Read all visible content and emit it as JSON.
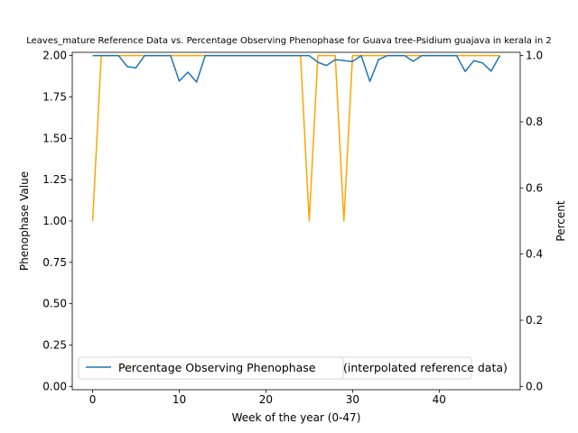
{
  "chart_data": {
    "type": "line",
    "title": "Leaves_mature Reference Data vs. Percentage Observing Phenophase for Guava tree-Psidium guajava in kerala in 2",
    "xlabel": "Week of the year (0-47)",
    "ylabel": "Phenophase Value",
    "y2label": "Percent",
    "xlim": [
      -2.35,
      49.35
    ],
    "ylim": [
      -0.02,
      2.02
    ],
    "y2lim": [
      -0.01,
      1.01
    ],
    "x_ticks": [
      0,
      10,
      20,
      30,
      40
    ],
    "y_ticks": [
      0.0,
      0.25,
      0.5,
      0.75,
      1.0,
      1.25,
      1.5,
      1.75,
      2.0
    ],
    "y2_ticks": [
      0.0,
      0.2,
      0.4,
      0.6,
      0.8,
      1.0
    ],
    "x_tick_labels": [
      "0",
      "10",
      "20",
      "30",
      "40"
    ],
    "y_tick_labels": [
      "0.00",
      "0.25",
      "0.50",
      "0.75",
      "1.00",
      "1.25",
      "1.50",
      "1.75",
      "2.00"
    ],
    "y2_tick_labels": [
      "0.0",
      "0.2",
      "0.4",
      "0.6",
      "0.8",
      "1.0"
    ],
    "legend": {
      "placement": "lower-left",
      "entries": [
        {
          "label": "Percentage Observing Phenophase",
          "color": "#1f77b4"
        },
        {
          "label": "(interpolated reference data)",
          "color": "#ffa500"
        }
      ]
    },
    "grid": false,
    "series": [
      {
        "name": "(interpolated reference data)",
        "axis": "left",
        "color": "#ffa500",
        "x": [
          0,
          1,
          2,
          3,
          4,
          5,
          6,
          7,
          8,
          9,
          10,
          11,
          12,
          13,
          14,
          15,
          16,
          17,
          18,
          19,
          20,
          21,
          22,
          23,
          24,
          25,
          26,
          27,
          28,
          29,
          30,
          31,
          32,
          33,
          34,
          35,
          36,
          37,
          38,
          39,
          40,
          41,
          42,
          43,
          44,
          45,
          46,
          47
        ],
        "values": [
          1,
          2,
          2,
          2,
          2,
          2,
          2,
          2,
          2,
          2,
          2,
          2,
          2,
          2,
          2,
          2,
          2,
          2,
          2,
          2,
          2,
          2,
          2,
          2,
          2,
          1,
          2,
          2,
          2,
          1,
          2,
          2,
          2,
          2,
          2,
          2,
          2,
          2,
          2,
          2,
          2,
          2,
          2,
          2,
          2,
          2,
          2,
          2
        ]
      },
      {
        "name": "Percentage Observing Phenophase",
        "axis": "right",
        "color": "#1f77b4",
        "x": [
          0,
          1,
          2,
          3,
          4,
          5,
          6,
          7,
          8,
          9,
          10,
          11,
          12,
          13,
          14,
          15,
          16,
          17,
          18,
          19,
          20,
          21,
          22,
          23,
          24,
          25,
          26,
          27,
          28,
          29,
          30,
          31,
          32,
          33,
          34,
          35,
          36,
          37,
          38,
          39,
          40,
          41,
          42,
          43,
          44,
          45,
          46,
          47
        ],
        "values": [
          1.0,
          1.0,
          1.0,
          1.0,
          0.967,
          0.963,
          1.0,
          1.0,
          1.0,
          1.0,
          0.923,
          0.95,
          0.92,
          1.0,
          1.0,
          1.0,
          1.0,
          1.0,
          1.0,
          1.0,
          1.0,
          1.0,
          1.0,
          1.0,
          1.0,
          1.0,
          0.98,
          0.97,
          0.988,
          0.985,
          0.982,
          1.0,
          0.922,
          0.988,
          1.0,
          1.0,
          1.0,
          0.983,
          1.0,
          1.0,
          1.0,
          1.0,
          1.0,
          0.952,
          0.985,
          0.978,
          0.953,
          1.0
        ]
      }
    ]
  }
}
